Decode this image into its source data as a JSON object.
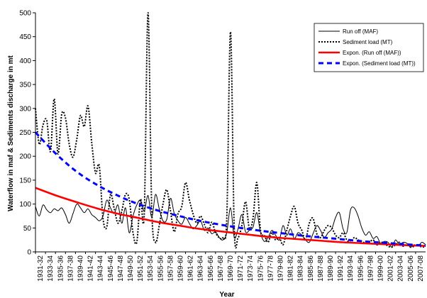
{
  "chart_data": {
    "type": "line",
    "title": "",
    "xlabel": "Year",
    "ylabel": "Waterflow in maf & Sediments discharge in mt",
    "ylim": [
      0,
      500
    ],
    "yticks": [
      0,
      50,
      100,
      150,
      200,
      250,
      300,
      350,
      400,
      450,
      500
    ],
    "grid": false,
    "legend_position": "top-right",
    "x_tick_labels": [
      "1931-32",
      "1933-34",
      "1935-36",
      "1937-38",
      "1939-40",
      "1941-42",
      "1943-44",
      "1945-46",
      "1947-48",
      "1949-50",
      "1951-52",
      "1953-54",
      "1955-56",
      "1957-58",
      "1959-60",
      "1961-62",
      "1963-64",
      "1965-66",
      "1967-68",
      "1969-70",
      "1971-72",
      "1973-74",
      "1975-76",
      "1977-78",
      "1979-80",
      "1981-82",
      "1983-84",
      "1985-86",
      "1987-88",
      "1989-90",
      "1991-92",
      "1993-94",
      "1995-96",
      "1997-98",
      "1999-00",
      "2001-02",
      "2003-04",
      "2005-06",
      "2007-08"
    ],
    "series": [
      {
        "name": "Run off (MAF)",
        "color": "#000000",
        "style": "solid",
        "values": [
          95,
          75,
          98,
          88,
          82,
          90,
          86,
          92,
          78,
          60,
          80,
          100,
          92,
          82,
          90,
          78,
          72,
          65,
          75,
          108,
          92,
          80,
          98,
          60,
          92,
          40,
          75,
          98,
          108,
          85,
          118,
          72,
          120,
          90,
          65,
          68,
          112,
          80,
          65,
          58,
          72,
          60,
          48,
          55,
          65,
          45,
          50,
          38,
          42,
          30,
          25,
          40,
          92,
          30,
          48,
          78,
          42,
          45,
          52,
          82,
          40,
          22,
          30,
          45,
          35,
          25,
          55,
          35,
          48,
          28,
          40,
          35,
          25,
          20,
          38,
          55,
          45,
          30,
          40,
          48,
          72,
          82,
          48,
          40,
          88,
          92,
          75,
          50,
          35,
          42,
          28,
          32,
          18,
          22,
          20,
          10,
          25,
          15,
          20,
          18,
          10,
          15,
          12,
          20,
          15
        ]
      },
      {
        "name": "Sediment load (MT)",
        "color": "#000000",
        "style": "dotted",
        "values": [
          300,
          225,
          265,
          275,
          210,
          320,
          205,
          288,
          280,
          225,
          198,
          235,
          285,
          262,
          305,
          228,
          165,
          180,
          70,
          52,
          120,
          90,
          60,
          85,
          120,
          110,
          40,
          20,
          110,
          80,
          500,
          90,
          20,
          55,
          100,
          130,
          85,
          42,
          80,
          95,
          145,
          110,
          80,
          60,
          75,
          58,
          40,
          62,
          40,
          30,
          30,
          70,
          460,
          45,
          30,
          55,
          105,
          50,
          70,
          145,
          45,
          35,
          20,
          40,
          25,
          30,
          15,
          45,
          75,
          95,
          60,
          45,
          25,
          60,
          70,
          38,
          30,
          45,
          55,
          50,
          35,
          30,
          40,
          25,
          20,
          30,
          25,
          22,
          18,
          20,
          25,
          15,
          20,
          18,
          12,
          10,
          15,
          20,
          12,
          15,
          10,
          12,
          15,
          10,
          12
        ]
      },
      {
        "name": "Expon. (Run off (MAF))",
        "color": "#ff0000",
        "style": "solid-thick",
        "values": [
          134,
          118,
          104,
          91,
          80,
          71,
          62,
          55,
          48,
          43,
          38,
          33,
          29,
          26,
          23,
          20,
          18,
          16,
          14,
          12.5
        ]
      },
      {
        "name": "Expon. (Sediment load (MT))",
        "color": "#0000ff",
        "style": "dashed-thick",
        "values": [
          250,
          205,
          168,
          140,
          118,
          100,
          86,
          75,
          65,
          57,
          50,
          44,
          39,
          34,
          30,
          26,
          22,
          19,
          16,
          13
        ]
      }
    ]
  }
}
